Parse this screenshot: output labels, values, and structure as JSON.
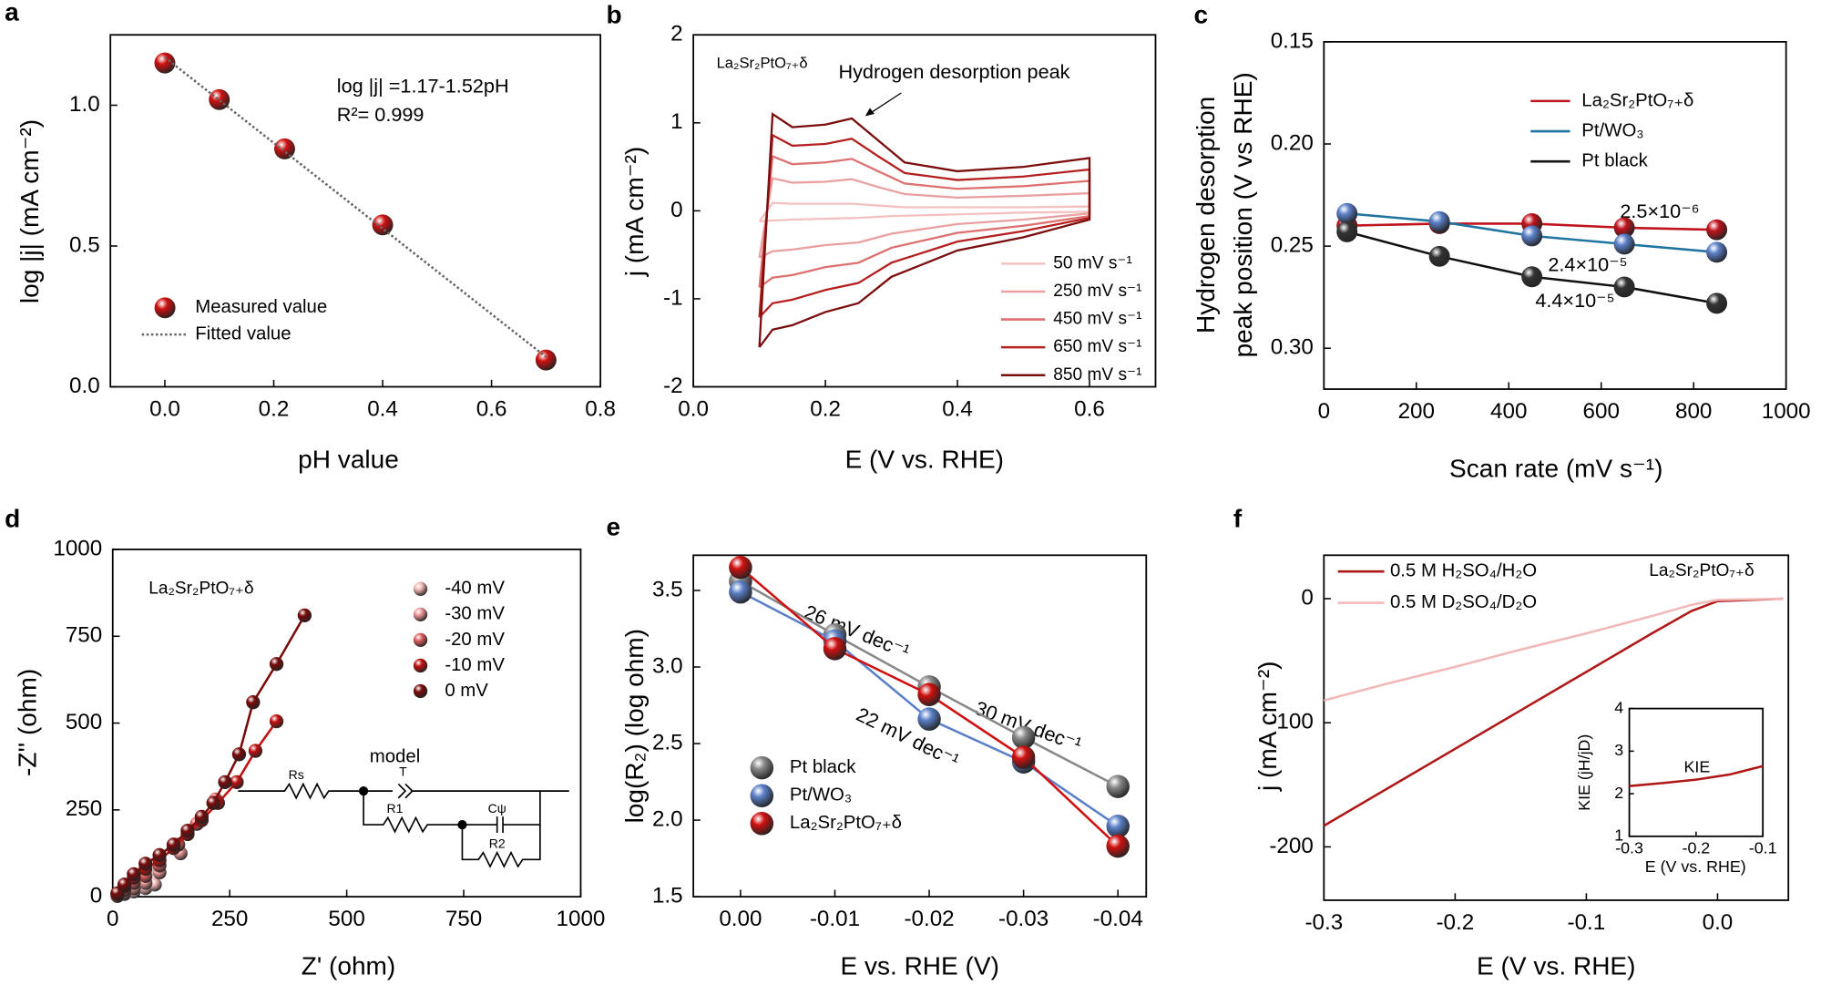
{
  "chart_data": [
    {
      "type": "scatter",
      "label": "a",
      "xlabel": "pH value",
      "ylabel": "log |j| (mA cm⁻²)",
      "xlim": [
        -0.1,
        0.8
      ],
      "ylim": [
        0,
        1.25
      ],
      "xticks": [
        {
          "value": 0,
          "label": "0.0"
        },
        {
          "value": 0.2,
          "label": "0.2"
        },
        {
          "value": 0.4,
          "label": "0.4"
        },
        {
          "value": 0.6,
          "label": "0.6"
        },
        {
          "value": 0.8,
          "label": "0.8"
        }
      ],
      "yticks": [
        {
          "value": 0,
          "label": "0.0"
        },
        {
          "value": 0.5,
          "label": "0.5"
        },
        {
          "value": 1,
          "label": "1.0"
        }
      ],
      "annotations": [
        {
          "text": "log |j| =1.17-1.52pH",
          "color": "#000000"
        },
        {
          "text": "R²= 0.999",
          "color": "#000000"
        }
      ],
      "series": [
        {
          "name": "Measured value",
          "color": "#d01010",
          "style": "markers",
          "x": [
            0,
            0.1,
            0.22,
            0.4,
            0.7
          ],
          "values": [
            1.15,
            1.02,
            0.845,
            0.575,
            0.095
          ]
        },
        {
          "name": "Fitted value",
          "color": "#666666",
          "style": "line",
          "dash": true,
          "x": [
            0,
            0.7
          ],
          "values": [
            1.17,
            0.106
          ]
        }
      ]
    },
    {
      "type": "line",
      "label": "b",
      "title": "La₂Sr₂PtO₇₊δ",
      "xlabel": "E (V vs. RHE)",
      "ylabel": "j (mA cm⁻²)",
      "xlim": [
        0,
        0.7
      ],
      "ylim": [
        -2,
        2
      ],
      "xticks": [
        {
          "value": 0,
          "label": "0.0"
        },
        {
          "value": 0.2,
          "label": "0.2"
        },
        {
          "value": 0.4,
          "label": "0.4"
        },
        {
          "value": 0.6,
          "label": "0.6"
        }
      ],
      "yticks": [
        -2,
        -1,
        0,
        1,
        2
      ],
      "annotations": [
        {
          "text": "Hydrogen desorption peak",
          "color": "#000000"
        }
      ],
      "x": [
        0.1,
        0.12,
        0.15,
        0.2,
        0.24,
        0.28,
        0.32,
        0.4,
        0.5,
        0.6,
        0.6,
        0.5,
        0.4,
        0.3,
        0.25,
        0.2,
        0.15,
        0.12,
        0.1
      ],
      "series": [
        {
          "name": "50 mV s⁻¹",
          "color": "#f4c0c0",
          "style": "line",
          "values": [
            -0.12,
            0.09,
            0.08,
            0.08,
            0.08,
            0.06,
            0.04,
            0.04,
            0.04,
            0.05,
            -0.01,
            -0.02,
            -0.04,
            -0.06,
            -0.08,
            -0.09,
            -0.1,
            -0.11,
            -0.12
          ]
        },
        {
          "name": "250 mV s⁻¹",
          "color": "#eaa0a0",
          "style": "line",
          "values": [
            -0.53,
            0.37,
            0.32,
            0.33,
            0.36,
            0.27,
            0.19,
            0.15,
            0.17,
            0.2,
            -0.03,
            -0.1,
            -0.15,
            -0.26,
            -0.36,
            -0.39,
            -0.44,
            -0.46,
            -0.53
          ]
        },
        {
          "name": "450 mV s⁻¹",
          "color": "#dd7070",
          "style": "line",
          "values": [
            -0.87,
            0.62,
            0.53,
            0.55,
            0.59,
            0.45,
            0.31,
            0.25,
            0.28,
            0.34,
            -0.06,
            -0.17,
            -0.25,
            -0.42,
            -0.59,
            -0.64,
            -0.73,
            -0.76,
            -0.87
          ]
        },
        {
          "name": "650 mV s⁻¹",
          "color": "#b52020",
          "style": "line",
          "values": [
            -1.21,
            0.86,
            0.74,
            0.76,
            0.82,
            0.62,
            0.43,
            0.35,
            0.39,
            0.47,
            -0.08,
            -0.23,
            -0.35,
            -0.59,
            -0.82,
            -0.9,
            -1.01,
            -1.05,
            -1.21
          ]
        },
        {
          "name": "850 mV s⁻¹",
          "color": "#7a0d0d",
          "style": "line",
          "values": [
            -1.55,
            1.1,
            0.95,
            0.98,
            1.05,
            0.8,
            0.55,
            0.45,
            0.5,
            0.6,
            -0.1,
            -0.3,
            -0.45,
            -0.75,
            -1.05,
            -1.15,
            -1.3,
            -1.35,
            -1.55
          ]
        }
      ]
    },
    {
      "type": "scatter",
      "label": "c",
      "xlabel": "Scan rate (mV s⁻¹)",
      "ylabel": [
        "Hydrogen desorption",
        "peak position (V vs RHE)"
      ],
      "xlim": [
        0,
        1000
      ],
      "ylim": [
        0.32,
        0.15
      ],
      "xticks": [
        0,
        200,
        400,
        600,
        800,
        1000
      ],
      "yticks": [
        0.15,
        {
          "value": 0.2,
          "label": "0.20"
        },
        0.25,
        {
          "value": 0.3,
          "label": "0.30"
        }
      ],
      "annotations": [
        {
          "text": "2.5×10⁻⁶",
          "color": "#c0141c"
        },
        {
          "text": "2.4×10⁻⁵",
          "color": "#4a7fb0"
        },
        {
          "text": "4.4×10⁻⁵",
          "color": "#777777"
        }
      ],
      "x": [
        50,
        250,
        450,
        650,
        850
      ],
      "series": [
        {
          "name": "La₂Sr₂PtO₇₊δ",
          "color": "#c0141c",
          "style": "markers+line",
          "values": [
            0.24,
            0.239,
            0.239,
            0.241,
            0.242
          ]
        },
        {
          "name": "Pt/WO₃",
          "color": "#1f74a0",
          "marker_color": "#5b80c8",
          "style": "markers+line",
          "values": [
            0.234,
            0.238,
            0.245,
            0.249,
            0.253
          ]
        },
        {
          "name": "Pt black",
          "color": "#111111",
          "marker_color": "#333333",
          "style": "markers+line",
          "values": [
            0.243,
            0.255,
            0.265,
            0.27,
            0.278
          ]
        }
      ]
    },
    {
      "type": "scatter",
      "label": "d",
      "title": "La₂Sr₂PtO₇₊δ",
      "xlabel": "Z' (ohm)",
      "ylabel": "-Z'' (ohm)",
      "xlim": [
        0,
        1000
      ],
      "ylim": [
        0,
        1000
      ],
      "xticks": [
        0,
        250,
        500,
        750,
        1000
      ],
      "yticks": [
        0,
        250,
        500,
        750,
        1000
      ],
      "inset_labels": [
        "model",
        "Rs",
        "T",
        "R1",
        "Cψ",
        "R2"
      ],
      "series": [
        {
          "name": "-40 mV",
          "color": "#f6b8b8",
          "style": "markers",
          "x": [
            10,
            25,
            45,
            70,
            90
          ],
          "values": [
            2,
            8,
            15,
            25,
            35
          ]
        },
        {
          "name": "-30 mV",
          "color": "#ef9a9a",
          "style": "markers",
          "x": [
            10,
            25,
            45,
            70,
            100,
            145
          ],
          "values": [
            3,
            12,
            25,
            40,
            70,
            125
          ]
        },
        {
          "name": "-20 mV",
          "color": "#e06060",
          "style": "markers",
          "x": [
            10,
            25,
            45,
            70,
            100,
            140,
            180,
            220
          ],
          "values": [
            5,
            20,
            40,
            60,
            90,
            150,
            210,
            280
          ]
        },
        {
          "name": "-10 mV",
          "color": "#c41010",
          "style": "markers+line",
          "x": [
            10,
            25,
            45,
            70,
            100,
            130,
            160,
            190,
            225,
            265,
            305,
            350
          ],
          "values": [
            8,
            30,
            55,
            80,
            105,
            140,
            180,
            220,
            270,
            330,
            420,
            505
          ]
        },
        {
          "name": "0 mV",
          "color": "#7a0a0a",
          "style": "markers+line",
          "x": [
            10,
            25,
            45,
            70,
            100,
            130,
            160,
            190,
            215,
            240,
            270,
            300,
            350,
            410
          ],
          "values": [
            10,
            35,
            65,
            95,
            120,
            150,
            190,
            230,
            270,
            330,
            410,
            560,
            670,
            810
          ]
        }
      ]
    },
    {
      "type": "scatter",
      "label": "e",
      "xlabel": "E vs. RHE (V)",
      "ylabel": "log(R₂) (log ohm)",
      "xlim": [
        0.005,
        -0.043
      ],
      "ylim": [
        1.5,
        3.73
      ],
      "xticks": [
        {
          "value": 0,
          "label": "0.00"
        },
        {
          "value": -0.01,
          "label": "-0.01"
        },
        {
          "value": -0.02,
          "label": "-0.02"
        },
        {
          "value": -0.03,
          "label": "-0.03"
        },
        {
          "value": -0.04,
          "label": "-0.04"
        }
      ],
      "yticks": [
        1.5,
        {
          "value": 2,
          "label": "2.0"
        },
        2.5,
        {
          "value": 3,
          "label": "3.0"
        },
        3.5
      ],
      "annotations": [
        {
          "text": "26 mV dec⁻¹",
          "color": "#1f74a0"
        },
        {
          "text": "30 mV dec⁻¹",
          "color": "#888888"
        },
        {
          "text": "22 mV dec⁻¹",
          "color": "#c0141c"
        }
      ],
      "x": [
        0,
        -0.01,
        -0.02,
        -0.03,
        -0.04
      ],
      "series": [
        {
          "name": "Pt black",
          "color": "#888888",
          "style": "markers+line",
          "values": [
            3.56,
            3.21,
            2.87,
            2.54,
            2.22
          ]
        },
        {
          "name": "Pt/WO₃",
          "color": "#5b80c8",
          "style": "markers+line",
          "values": [
            3.49,
            3.17,
            2.66,
            2.38,
            1.96
          ]
        },
        {
          "name": "La₂Sr₂PtO₇₊δ",
          "color": "#d01010",
          "style": "markers+line",
          "values": [
            3.65,
            3.12,
            2.82,
            2.41,
            1.83
          ]
        }
      ]
    },
    {
      "type": "line",
      "label": "f",
      "title": "La₂Sr₂PtO₇₊δ",
      "xlabel": "E (V vs. RHE)",
      "ylabel": "j (mA cm⁻²)",
      "xlim": [
        -0.3,
        0.054
      ],
      "ylim": [
        -243,
        35
      ],
      "xticks": [
        -0.3,
        -0.2,
        -0.1,
        {
          "value": 0,
          "label": "0.0"
        }
      ],
      "yticks": [
        -200,
        -100,
        0
      ],
      "x": [
        -0.3,
        -0.25,
        -0.2,
        -0.15,
        -0.1,
        -0.05,
        -0.02,
        0,
        0.05
      ],
      "series": [
        {
          "name": "0.5 M H₂SO₄/H₂O",
          "color": "#b01818",
          "style": "line",
          "values": [
            -183,
            -152,
            -121,
            -90,
            -59,
            -28,
            -10,
            -2,
            0
          ]
        },
        {
          "name": "0.5 M D₂SO₄/D₂O",
          "color": "#f2b8b8",
          "style": "line",
          "values": [
            -82,
            -68,
            -55,
            -41,
            -28,
            -14,
            -5,
            -1,
            0
          ]
        }
      ]
    },
    {
      "type": "line",
      "xlabel": "E (V vs. RHE)",
      "ylabel": "KIE (jH/jD)",
      "xlim": [
        -0.3,
        -0.1
      ],
      "ylim": [
        1,
        4
      ],
      "xticks": [
        -0.3,
        -0.2,
        -0.1
      ],
      "yticks": [
        1,
        2,
        3,
        4
      ],
      "annotations": [
        {
          "text": "KIE",
          "color": "#b01818"
        }
      ],
      "x": [
        -0.3,
        -0.25,
        -0.2,
        -0.15,
        -0.1
      ],
      "series": [
        {
          "color": "#b01818",
          "style": "line",
          "values": [
            2.18,
            2.25,
            2.33,
            2.45,
            2.65
          ]
        }
      ]
    }
  ]
}
